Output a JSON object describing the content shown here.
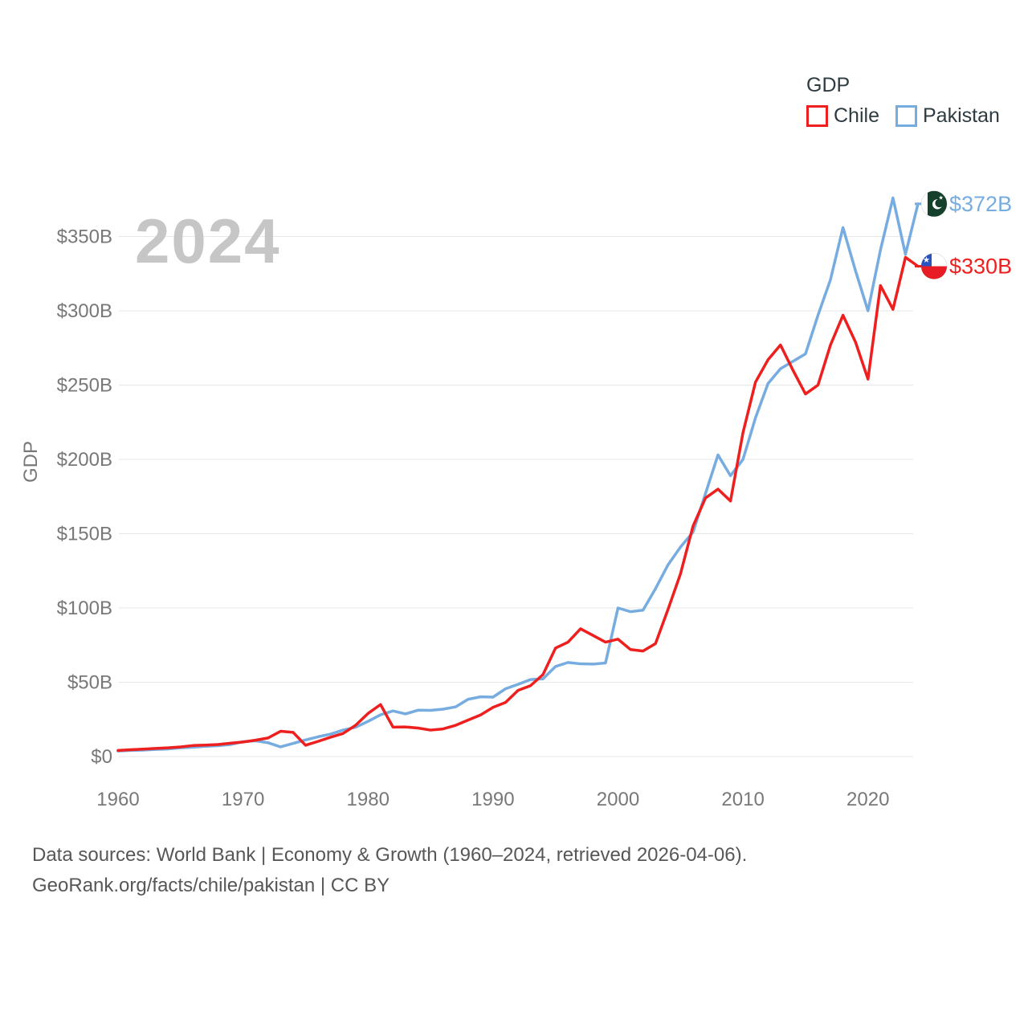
{
  "legend": {
    "title": "GDP",
    "items": [
      {
        "label": "Chile",
        "color": "#ee1f1f"
      },
      {
        "label": "Pakistan",
        "color": "#76ace0"
      }
    ]
  },
  "watermark": "2024",
  "footer": {
    "line1": "Data sources: World Bank | Economy & Growth (1960–2024, retrieved 2026-04-06).",
    "line2": "GeoRank.org/facts/chile/pakistan | CC BY"
  },
  "colors": {
    "chile_line": "#ee1f1f",
    "pakistan_line": "#76ace0",
    "grid": "#e7e7e7",
    "tick_text": "#77787a",
    "watermark_text": "#c6c6c6",
    "legend_text": "#2e3c42",
    "pakistan_flag_green": "#14402c",
    "chile_flag_blue": "#2a52be",
    "chile_flag_red": "#e81c24"
  },
  "chart_data": {
    "type": "line",
    "title": "GDP",
    "xlabel": "",
    "ylabel": "GDP",
    "grid": true,
    "legend_position": "top-right",
    "xlim": [
      1960,
      2024
    ],
    "ylim": [
      0,
      380
    ],
    "x_ticks": [
      1960,
      1970,
      1980,
      1990,
      2000,
      2010,
      2020
    ],
    "y_tick_values": [
      0,
      50,
      100,
      150,
      200,
      250,
      300,
      350
    ],
    "y_ticks": [
      "$0",
      "$50B",
      "$100B",
      "$150B",
      "$200B",
      "$250B",
      "$300B",
      "$350B"
    ],
    "x": [
      1960,
      1961,
      1962,
      1963,
      1964,
      1965,
      1966,
      1967,
      1968,
      1969,
      1970,
      1971,
      1972,
      1973,
      1974,
      1975,
      1976,
      1977,
      1978,
      1979,
      1980,
      1981,
      1982,
      1983,
      1984,
      1985,
      1986,
      1987,
      1988,
      1989,
      1990,
      1991,
      1992,
      1993,
      1994,
      1995,
      1996,
      1997,
      1998,
      1999,
      2000,
      2001,
      2002,
      2003,
      2004,
      2005,
      2006,
      2007,
      2008,
      2009,
      2010,
      2011,
      2012,
      2013,
      2014,
      2015,
      2016,
      2017,
      2018,
      2019,
      2020,
      2021,
      2022,
      2023,
      2024
    ],
    "series": [
      {
        "name": "Pakistan",
        "color": "#76ace0",
        "values": [
          3.7,
          4.1,
          4.3,
          4.8,
          5.1,
          5.9,
          6.3,
          6.9,
          7.3,
          8.1,
          10.0,
          10.6,
          9.3,
          6.5,
          8.8,
          11.2,
          13.3,
          15.1,
          17.8,
          19.7,
          23.7,
          28.1,
          30.7,
          28.7,
          31.2,
          31.1,
          31.9,
          33.4,
          38.5,
          40.2,
          40.0,
          45.6,
          48.6,
          51.8,
          52.3,
          60.6,
          63.3,
          62.4,
          62.2,
          63.0,
          100.0,
          97.5,
          98.5,
          113.0,
          129.0,
          141.0,
          151.0,
          177.0,
          203.0,
          189.0,
          200.0,
          228.0,
          251.0,
          261.0,
          266.0,
          271.0,
          297.0,
          321.0,
          356.0,
          327.0,
          300.0,
          341.0,
          376.0,
          338.0,
          372.0
        ]
      },
      {
        "name": "Chile",
        "color": "#ee1f1f",
        "values": [
          4.1,
          4.6,
          5.0,
          5.5,
          5.9,
          6.5,
          7.4,
          7.7,
          8.1,
          9.0,
          9.8,
          11.0,
          12.5,
          17.0,
          16.3,
          7.6,
          10.2,
          13.0,
          15.5,
          21.0,
          29.0,
          35.0,
          19.8,
          19.9,
          19.2,
          17.8,
          18.6,
          21.0,
          24.5,
          28.0,
          33.1,
          36.4,
          44.5,
          47.7,
          55.2,
          73.0,
          77.0,
          86.0,
          81.5,
          77.0,
          79.0,
          72.0,
          71.0,
          76.0,
          99.0,
          123.0,
          155.0,
          174.0,
          180.0,
          172.0,
          218.0,
          252.0,
          267.0,
          277.0,
          260.0,
          244.0,
          250.0,
          277.0,
          297.0,
          279.0,
          254.0,
          317.0,
          301.0,
          336.0,
          330.0
        ]
      }
    ],
    "end_labels": {
      "Pakistan": "$372B",
      "Chile": "$330B"
    }
  }
}
